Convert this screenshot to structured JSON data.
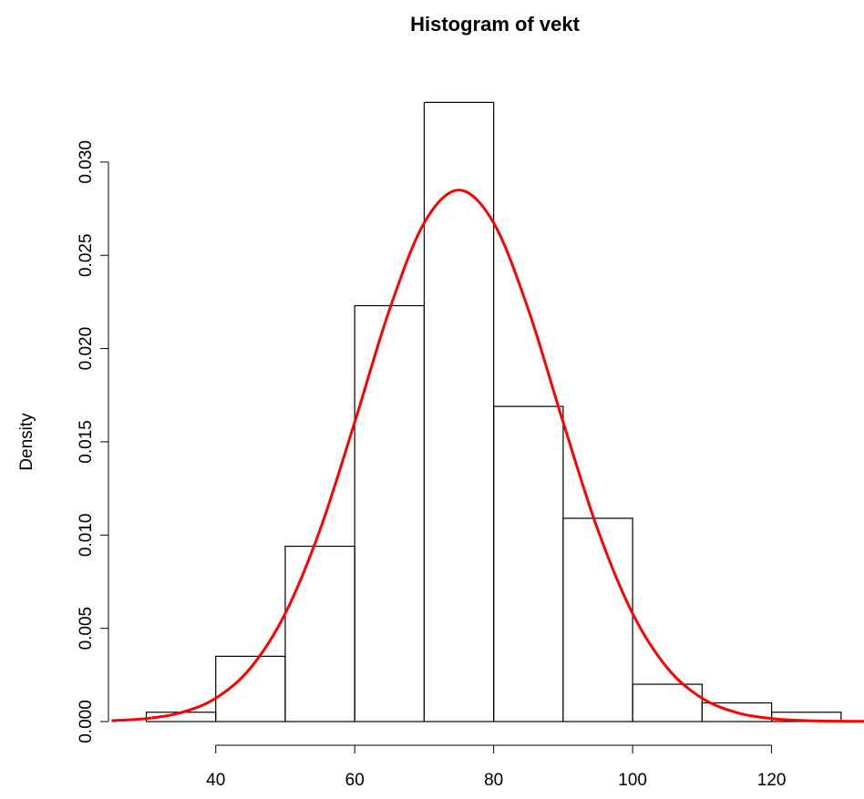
{
  "chart_data": {
    "type": "histogram",
    "title": "Histogram of vekt",
    "ylabel": "Density",
    "bins": [
      30,
      40,
      50,
      60,
      70,
      80,
      90,
      100,
      110,
      120,
      130
    ],
    "values": [
      0.0005,
      0.0035,
      0.0094,
      0.0223,
      0.0332,
      0.0169,
      0.0109,
      0.002,
      0.001,
      0.0005
    ],
    "color": "#000000",
    "curve": {
      "color": "#ff0000",
      "x": [
        25,
        30,
        35,
        40,
        45,
        50,
        55,
        60,
        65,
        70,
        75,
        80,
        85,
        90,
        95,
        100,
        105,
        110,
        115,
        120,
        125,
        130,
        135
      ],
      "values": [
        5e-05,
        0.00016,
        0.00048,
        0.00125,
        0.00287,
        0.00579,
        0.01027,
        0.01605,
        0.02208,
        0.02674,
        0.0285,
        0.02674,
        0.02208,
        0.01605,
        0.01027,
        0.00579,
        0.00287,
        0.00125,
        0.00048,
        0.00016,
        5e-05,
        2e-05,
        1e-05
      ]
    },
    "xlim": [
      26,
      133.3
    ],
    "ylim": [
      0,
      0.034
    ],
    "xticks": [
      40,
      60,
      80,
      100,
      120
    ],
    "yticks": [
      {
        "value": 0,
        "label": "0.000"
      },
      {
        "value": 0.005,
        "label": "0.005"
      },
      {
        "value": 0.01,
        "label": "0.010"
      },
      {
        "value": 0.015,
        "label": "0.015"
      },
      {
        "value": 0.02,
        "label": "0.020"
      },
      {
        "value": 0.025,
        "label": "0.025"
      },
      {
        "value": 0.03,
        "label": "0.030"
      }
    ]
  }
}
